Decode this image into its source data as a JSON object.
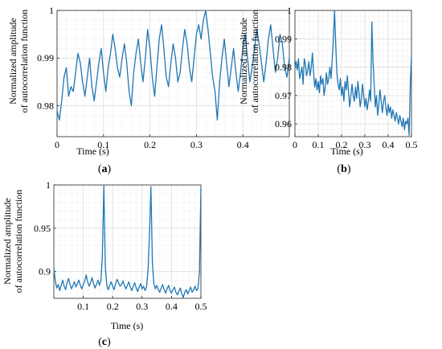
{
  "chart_data": [
    {
      "panel": "a",
      "type": "line",
      "xlabel": "Time (s)",
      "ylabel": [
        "Normalized amplitude",
        "of autocorrelation function"
      ],
      "xlim": [
        0,
        0.5
      ],
      "ylim": [
        0.9735,
        1.0
      ],
      "xticks": [
        0,
        0.1,
        0.2,
        0.3,
        0.4
      ],
      "xtick_labels": [
        "0",
        "0.1",
        "0.2",
        "0.3",
        "0.4"
      ],
      "yticks": [
        0.98,
        0.99,
        1.0
      ],
      "ytick_labels": [
        "0.98",
        "0.99",
        "1"
      ],
      "grid": true,
      "color": "#1f77b4",
      "x": [
        0,
        0.005,
        0.01,
        0.015,
        0.02,
        0.025,
        0.03,
        0.035,
        0.04,
        0.045,
        0.05,
        0.055,
        0.06,
        0.065,
        0.07,
        0.075,
        0.08,
        0.085,
        0.09,
        0.095,
        0.1,
        0.105,
        0.11,
        0.115,
        0.12,
        0.125,
        0.13,
        0.135,
        0.14,
        0.145,
        0.15,
        0.155,
        0.16,
        0.165,
        0.17,
        0.175,
        0.18,
        0.185,
        0.19,
        0.195,
        0.2,
        0.205,
        0.21,
        0.215,
        0.22,
        0.225,
        0.23,
        0.235,
        0.24,
        0.245,
        0.25,
        0.255,
        0.26,
        0.265,
        0.27,
        0.275,
        0.28,
        0.285,
        0.29,
        0.295,
        0.3,
        0.305,
        0.31,
        0.315,
        0.32,
        0.325,
        0.33,
        0.335,
        0.34,
        0.345,
        0.35,
        0.355,
        0.36,
        0.365,
        0.37,
        0.375,
        0.38,
        0.385,
        0.39,
        0.395,
        0.4,
        0.405,
        0.41,
        0.415,
        0.42,
        0.425,
        0.43,
        0.435,
        0.44,
        0.445,
        0.45,
        0.455,
        0.46,
        0.465,
        0.47,
        0.475,
        0.48,
        0.485,
        0.49,
        0.495,
        0.5
      ],
      "y": [
        0.979,
        0.977,
        0.981,
        0.986,
        0.988,
        0.982,
        0.984,
        0.983,
        0.987,
        0.991,
        0.989,
        0.985,
        0.982,
        0.986,
        0.99,
        0.984,
        0.981,
        0.985,
        0.989,
        0.992,
        0.987,
        0.983,
        0.988,
        0.991,
        0.995,
        0.992,
        0.988,
        0.986,
        0.99,
        0.993,
        0.989,
        0.983,
        0.98,
        0.987,
        0.991,
        0.994,
        0.989,
        0.985,
        0.99,
        0.996,
        0.992,
        0.986,
        0.982,
        0.988,
        0.994,
        0.997,
        0.992,
        0.986,
        0.984,
        0.989,
        0.993,
        0.99,
        0.985,
        0.987,
        0.992,
        0.996,
        0.993,
        0.988,
        0.985,
        0.99,
        0.995,
        0.997,
        0.994,
        0.998,
        1.0,
        0.996,
        0.991,
        0.986,
        0.983,
        0.977,
        0.985,
        0.99,
        0.994,
        0.989,
        0.984,
        0.988,
        0.992,
        0.987,
        0.983,
        0.987,
        0.992,
        0.995,
        0.99,
        0.985,
        0.988,
        0.992,
        0.996,
        0.993,
        0.989,
        0.985,
        0.989,
        0.994,
        0.997,
        0.992,
        0.987,
        0.99,
        0.995,
        0.993,
        0.988,
        0.986,
        0.99
      ]
    },
    {
      "panel": "b",
      "type": "line",
      "xlabel": "Time (s)",
      "ylabel": [
        "Normalized amplitude",
        "of autocorrelation function"
      ],
      "xlim": [
        0,
        0.5
      ],
      "ylim": [
        0.9555,
        1.0
      ],
      "xticks": [
        0,
        0.1,
        0.2,
        0.3,
        0.4,
        0.5
      ],
      "xtick_labels": [
        "0",
        "0.1",
        "0.2",
        "0.3",
        "0.4",
        "0.5"
      ],
      "yticks": [
        0.96,
        0.97,
        0.98,
        0.99,
        1.0
      ],
      "ytick_labels": [
        "0.96",
        "0.97",
        "0.98",
        "0.99",
        "1"
      ],
      "grid": true,
      "color": "#1f77b4",
      "x": [
        0,
        0.005,
        0.01,
        0.015,
        0.02,
        0.025,
        0.03,
        0.035,
        0.04,
        0.045,
        0.05,
        0.055,
        0.06,
        0.065,
        0.07,
        0.075,
        0.08,
        0.085,
        0.09,
        0.095,
        0.1,
        0.105,
        0.11,
        0.115,
        0.12,
        0.125,
        0.13,
        0.135,
        0.14,
        0.145,
        0.15,
        0.155,
        0.16,
        0.165,
        0.17,
        0.175,
        0.18,
        0.185,
        0.19,
        0.195,
        0.2,
        0.205,
        0.21,
        0.215,
        0.22,
        0.225,
        0.23,
        0.235,
        0.24,
        0.245,
        0.25,
        0.255,
        0.26,
        0.265,
        0.27,
        0.275,
        0.28,
        0.285,
        0.29,
        0.295,
        0.3,
        0.305,
        0.31,
        0.315,
        0.32,
        0.325,
        0.33,
        0.335,
        0.34,
        0.345,
        0.35,
        0.355,
        0.36,
        0.365,
        0.37,
        0.375,
        0.38,
        0.385,
        0.39,
        0.395,
        0.4,
        0.405,
        0.41,
        0.415,
        0.42,
        0.425,
        0.43,
        0.435,
        0.44,
        0.445,
        0.45,
        0.455,
        0.46,
        0.465,
        0.47,
        0.475,
        0.48,
        0.485,
        0.49,
        0.495,
        0.5
      ],
      "y": [
        0.98,
        0.982,
        0.979,
        0.983,
        0.976,
        0.978,
        0.98,
        0.974,
        0.983,
        0.981,
        0.977,
        0.979,
        0.982,
        0.977,
        0.98,
        0.985,
        0.978,
        0.973,
        0.976,
        0.972,
        0.975,
        0.971,
        0.977,
        0.974,
        0.976,
        0.97,
        0.973,
        0.978,
        0.974,
        0.976,
        0.98,
        0.976,
        0.983,
        0.99,
        1.0,
        0.988,
        0.978,
        0.974,
        0.972,
        0.976,
        0.97,
        0.973,
        0.968,
        0.975,
        0.972,
        0.977,
        0.971,
        0.966,
        0.97,
        0.974,
        0.97,
        0.968,
        0.973,
        0.969,
        0.975,
        0.971,
        0.966,
        0.969,
        0.974,
        0.97,
        0.966,
        0.969,
        0.965,
        0.968,
        0.972,
        0.968,
        0.996,
        0.982,
        0.974,
        0.966,
        0.97,
        0.963,
        0.967,
        0.972,
        0.968,
        0.964,
        0.968,
        0.97,
        0.966,
        0.963,
        0.967,
        0.964,
        0.966,
        0.962,
        0.965,
        0.963,
        0.961,
        0.964,
        0.962,
        0.96,
        0.963,
        0.961,
        0.959,
        0.962,
        0.958,
        0.961,
        0.96,
        0.962,
        0.956,
        0.974,
        0.984
      ]
    },
    {
      "panel": "c",
      "type": "line",
      "xlabel": "Time (s)",
      "ylabel": [
        "Normalized amplitude",
        "of autocorrelation function"
      ],
      "xlim": [
        0,
        0.5
      ],
      "ylim": [
        0.869,
        1.0
      ],
      "xticks": [
        0.1,
        0.2,
        0.3,
        0.4,
        0.5
      ],
      "xtick_labels": [
        "0.1",
        "0.2",
        "0.3",
        "0.4",
        "0.5"
      ],
      "yticks": [
        0.9,
        0.95,
        1.0
      ],
      "ytick_labels": [
        "0.9",
        "0.95",
        "1"
      ],
      "grid": true,
      "color": "#1f77b4",
      "x": [
        0,
        0.005,
        0.01,
        0.015,
        0.02,
        0.025,
        0.03,
        0.035,
        0.04,
        0.045,
        0.05,
        0.055,
        0.06,
        0.065,
        0.07,
        0.075,
        0.08,
        0.085,
        0.09,
        0.095,
        0.1,
        0.105,
        0.11,
        0.115,
        0.12,
        0.125,
        0.13,
        0.135,
        0.14,
        0.145,
        0.15,
        0.155,
        0.16,
        0.165,
        0.17,
        0.175,
        0.18,
        0.185,
        0.19,
        0.195,
        0.2,
        0.205,
        0.21,
        0.215,
        0.22,
        0.225,
        0.23,
        0.235,
        0.24,
        0.245,
        0.25,
        0.255,
        0.26,
        0.265,
        0.27,
        0.275,
        0.28,
        0.285,
        0.29,
        0.295,
        0.3,
        0.305,
        0.31,
        0.315,
        0.32,
        0.325,
        0.33,
        0.335,
        0.34,
        0.345,
        0.35,
        0.355,
        0.36,
        0.365,
        0.37,
        0.375,
        0.38,
        0.385,
        0.39,
        0.395,
        0.4,
        0.405,
        0.41,
        0.415,
        0.42,
        0.425,
        0.43,
        0.435,
        0.44,
        0.445,
        0.45,
        0.455,
        0.46,
        0.465,
        0.47,
        0.475,
        0.48,
        0.485,
        0.49,
        0.495,
        0.5
      ],
      "y": [
        0.904,
        0.889,
        0.881,
        0.885,
        0.878,
        0.884,
        0.89,
        0.883,
        0.879,
        0.887,
        0.892,
        0.885,
        0.88,
        0.884,
        0.888,
        0.882,
        0.886,
        0.89,
        0.884,
        0.88,
        0.885,
        0.889,
        0.896,
        0.888,
        0.883,
        0.887,
        0.893,
        0.886,
        0.881,
        0.885,
        0.89,
        0.884,
        0.889,
        0.918,
        0.999,
        0.905,
        0.884,
        0.879,
        0.884,
        0.888,
        0.883,
        0.879,
        0.886,
        0.891,
        0.887,
        0.883,
        0.885,
        0.889,
        0.884,
        0.88,
        0.884,
        0.888,
        0.882,
        0.878,
        0.883,
        0.887,
        0.881,
        0.877,
        0.882,
        0.886,
        0.88,
        0.883,
        0.878,
        0.882,
        0.9,
        0.94,
        0.998,
        0.91,
        0.886,
        0.88,
        0.884,
        0.879,
        0.876,
        0.881,
        0.885,
        0.879,
        0.875,
        0.88,
        0.884,
        0.878,
        0.875,
        0.879,
        0.882,
        0.876,
        0.873,
        0.877,
        0.881,
        0.874,
        0.87,
        0.876,
        0.879,
        0.874,
        0.878,
        0.882,
        0.876,
        0.879,
        0.883,
        0.878,
        0.88,
        0.9,
        0.997
      ]
    }
  ],
  "panel_labels": {
    "a": {
      "open": "(",
      "letter": "a",
      "close": ")"
    },
    "b": {
      "open": "(",
      "letter": "b",
      "close": ")"
    },
    "c": {
      "open": "(",
      "letter": "c",
      "close": ")"
    }
  }
}
